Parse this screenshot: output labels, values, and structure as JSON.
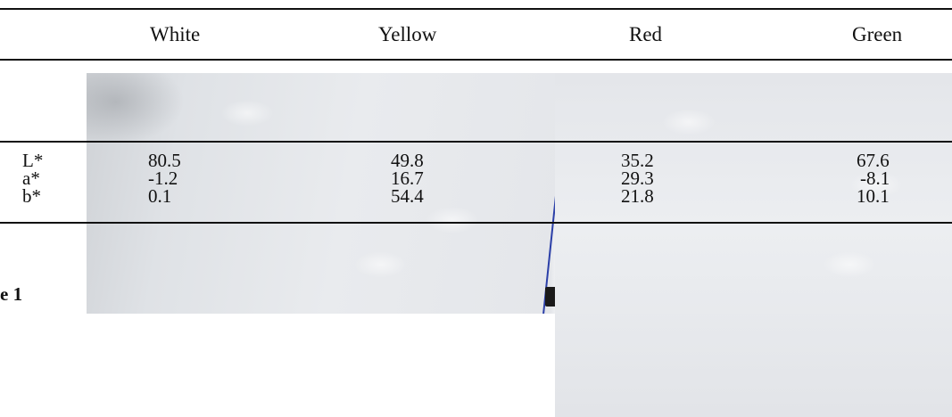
{
  "table": {
    "columns": [
      "White",
      "Yellow",
      "Red",
      "Green"
    ],
    "row_labels": [
      "L*",
      "a*",
      "b*"
    ],
    "values": {
      "white": [
        "80.5",
        "-1.2",
        "0.1"
      ],
      "yellow": [
        "49.8",
        "16.7",
        "54.4"
      ],
      "red": [
        "35.2",
        "29.3",
        "21.8"
      ],
      "green": [
        "67.6",
        "-8.1",
        "10.1"
      ]
    }
  },
  "caption": "e 1"
}
